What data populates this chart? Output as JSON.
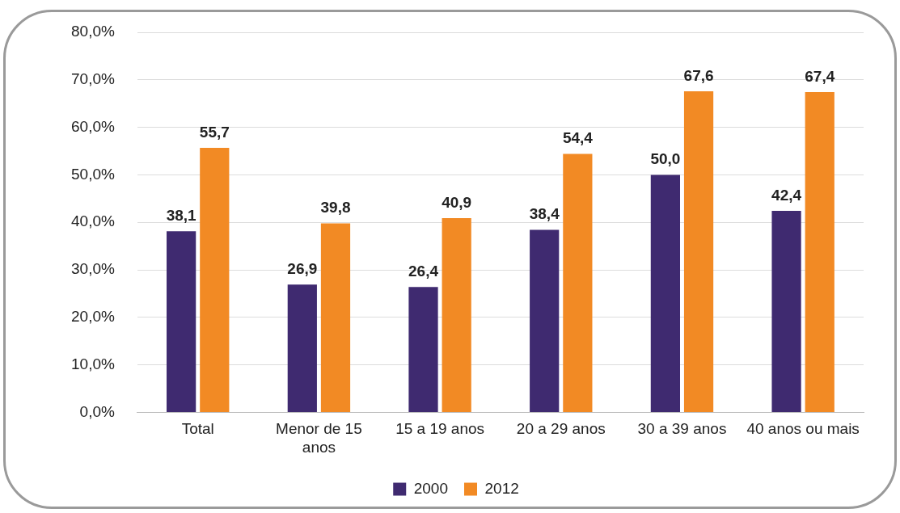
{
  "chart_data": {
    "type": "bar",
    "categories": [
      "Total",
      "Menor de 15 anos",
      "15 a 19 anos",
      "20 a 29 anos",
      "30 a 39 anos",
      "40 anos ou mais"
    ],
    "series": [
      {
        "name": "2000",
        "color": "#3f2a70",
        "values": [
          38.1,
          26.9,
          26.4,
          38.4,
          50.0,
          42.4
        ],
        "value_labels": [
          "38,1",
          "26,9",
          "26,4",
          "38,4",
          "50,0",
          "42,4"
        ]
      },
      {
        "name": "2012",
        "color": "#f28a24",
        "values": [
          55.7,
          39.8,
          40.9,
          54.4,
          67.6,
          67.4
        ],
        "value_labels": [
          "55,7",
          "39,8",
          "40,9",
          "54,4",
          "67,6",
          "67,4"
        ]
      }
    ],
    "ylim": [
      0,
      80
    ],
    "yticks": [
      {
        "value": 0,
        "label": "0,0%"
      },
      {
        "value": 10,
        "label": "10,0%"
      },
      {
        "value": 20,
        "label": "20,0%"
      },
      {
        "value": 30,
        "label": "30,0%"
      },
      {
        "value": 40,
        "label": "40,0%"
      },
      {
        "value": 50,
        "label": "50,0%"
      },
      {
        "value": 60,
        "label": "60,0%"
      },
      {
        "value": 70,
        "label": "70,0%"
      },
      {
        "value": 80,
        "label": "80,0%"
      }
    ],
    "grid": "y",
    "legend": "bottom"
  }
}
